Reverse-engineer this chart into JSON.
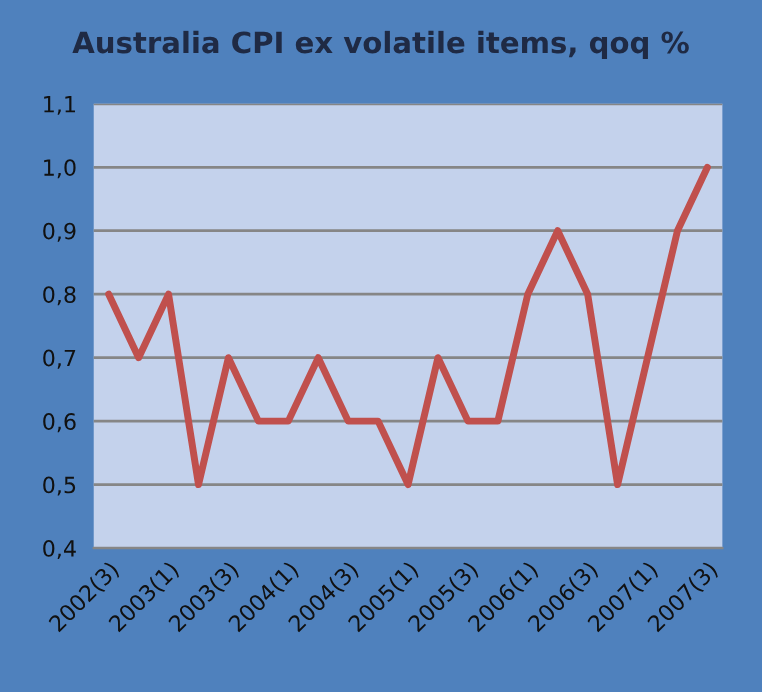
{
  "chart_data": {
    "type": "line",
    "title": "Australia CPI ex volatile items, qoq %",
    "categories": [
      "2002(3)",
      null,
      "2003(1)",
      null,
      "2003(3)",
      null,
      "2004(1)",
      null,
      "2004(3)",
      null,
      "2005(1)",
      null,
      "2005(3)",
      null,
      "2006(1)",
      null,
      "2006(3)",
      null,
      "2007(1)",
      null,
      "2007(3)"
    ],
    "series": [
      {
        "color": "#c0504d",
        "values": [
          0.8,
          0.7,
          0.8,
          0.5,
          0.7,
          0.6,
          0.6,
          0.7,
          0.6,
          0.6,
          0.5,
          0.7,
          0.6,
          0.6,
          0.8,
          0.9,
          0.8,
          0.5,
          0.7,
          0.9,
          1.0
        ]
      }
    ],
    "ylim": [
      0.4,
      1.1
    ],
    "yticks": [
      {
        "value": 0.4,
        "label": "0,4"
      },
      {
        "value": 0.5,
        "label": "0,5"
      },
      {
        "value": 0.6,
        "label": "0,6"
      },
      {
        "value": 0.7,
        "label": "0,7"
      },
      {
        "value": 0.8,
        "label": "0,8"
      },
      {
        "value": 0.9,
        "label": "0,9"
      },
      {
        "value": 1.0,
        "label": "1,0"
      },
      {
        "value": 1.1,
        "label": "1,1"
      }
    ],
    "grid": "y",
    "legend": false,
    "marker": "none",
    "line_style": "solid"
  }
}
